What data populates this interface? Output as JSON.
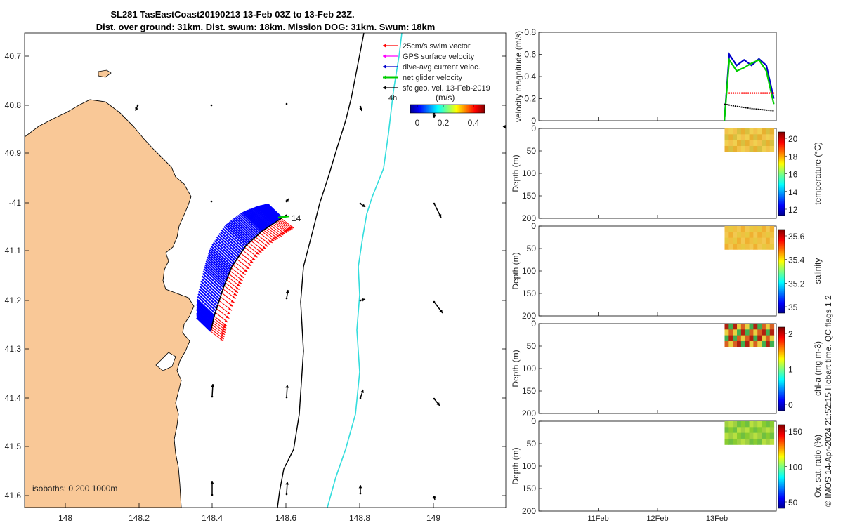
{
  "title": {
    "line1": "SL281 TasEastCoast20190213 13-Feb 03Z to 13-Feb 23Z.",
    "line2": "Dist. over ground: 31km. Dist. swum: 18km. Mission DOG: 31km. Swum: 18km"
  },
  "legend": {
    "items": [
      {
        "label": "25cm/s swim vector",
        "color": "#ff0000"
      },
      {
        "label": "GPS surface velocity",
        "color": "#ff00ff"
      },
      {
        "label": "dive-avg current veloc.",
        "color": "#0000cc"
      },
      {
        "label": "net glider velocity",
        "color": "#00cc00"
      },
      {
        "label": "sfc geo. vel. 13-Feb-2019",
        "color": "#000000"
      }
    ],
    "scale_label": "4h",
    "colorbar_title": "(m/s)",
    "colorbar_ticks": [
      "0",
      "0.2",
      "0.4"
    ]
  },
  "map": {
    "lon_ticks": [
      "148",
      "148.2",
      "148.4",
      "148.6",
      "148.8",
      "149"
    ],
    "lat_ticks": [
      "40.7",
      "40.8",
      "40.9",
      "-41",
      "41.1",
      "41.2",
      "41.3",
      "41.4",
      "41.5",
      "41.6"
    ],
    "isobaths_label": "isobaths: 0   200  1000m",
    "track_end_label": "14",
    "land_color": "#f9c897",
    "isobath_200_color": "#000000",
    "isobath_1000_color": "#33dddd"
  },
  "chart_data": [
    {
      "type": "line",
      "ylabel": "velocity magnitude (m/s)",
      "ylim": [
        0,
        0.8
      ],
      "yticks": [
        "0",
        "0.2",
        "0.4",
        "0.6",
        "0.8"
      ],
      "xlim_days": [
        "10-Feb",
        "14-Feb"
      ],
      "series": [
        {
          "color": "#0000cc",
          "x": [
            "13-Feb 03Z",
            "13-Feb 05Z",
            "13-Feb 08Z",
            "13-Feb 11Z",
            "13-Feb 14Z",
            "13-Feb 17Z",
            "13-Feb 20Z",
            "13-Feb 23Z"
          ],
          "y": [
            0.0,
            0.6,
            0.5,
            0.55,
            0.5,
            0.56,
            0.5,
            0.2
          ]
        },
        {
          "color": "#00cc00",
          "x": [
            "13-Feb 03Z",
            "13-Feb 05Z",
            "13-Feb 08Z",
            "13-Feb 11Z",
            "13-Feb 14Z",
            "13-Feb 17Z",
            "13-Feb 20Z",
            "13-Feb 23Z"
          ],
          "y": [
            0.0,
            0.55,
            0.45,
            0.48,
            0.52,
            0.55,
            0.45,
            0.15
          ]
        },
        {
          "color": "#ff0000",
          "x": [
            "13-Feb 05Z",
            "13-Feb 23Z"
          ],
          "y": [
            0.25,
            0.25
          ]
        },
        {
          "color": "#000000",
          "x": [
            "13-Feb 03Z",
            "13-Feb 08Z",
            "13-Feb 14Z",
            "13-Feb 23Z"
          ],
          "y": [
            0.15,
            0.13,
            0.11,
            0.09
          ]
        }
      ]
    },
    {
      "type": "heatmap",
      "ylabel": "Depth (m)",
      "yticks": [
        "0",
        "50",
        "100",
        "150",
        "200"
      ],
      "cbar_label": "temperature (°C)",
      "cbar_ticks": [
        "20",
        "18",
        "16",
        "14",
        "12"
      ]
    },
    {
      "type": "heatmap",
      "ylabel": "Depth (m)",
      "yticks": [
        "0",
        "50",
        "100",
        "150",
        "200"
      ],
      "cbar_label": "salinity",
      "cbar_ticks": [
        "35.6",
        "35.4",
        "35.2",
        "35"
      ]
    },
    {
      "type": "heatmap",
      "ylabel": "Depth (m)",
      "yticks": [
        "0",
        "50",
        "100",
        "150",
        "200"
      ],
      "cbar_label": "chl-a (mg m-3)",
      "cbar_ticks": [
        "2",
        "1",
        "0"
      ]
    },
    {
      "type": "heatmap",
      "ylabel": "Depth (m)",
      "yticks": [
        "0",
        "50",
        "100",
        "150",
        "200"
      ],
      "cbar_label": "Ox. sat. ratio (%)",
      "cbar_ticks": [
        "150",
        "100",
        "50"
      ]
    }
  ],
  "time_ticks": [
    "11Feb",
    "12Feb",
    "13Feb"
  ],
  "footer_note": "© IMOS 14-Apr-2024 21:52:15 Hobart time. QC flags 1  2"
}
